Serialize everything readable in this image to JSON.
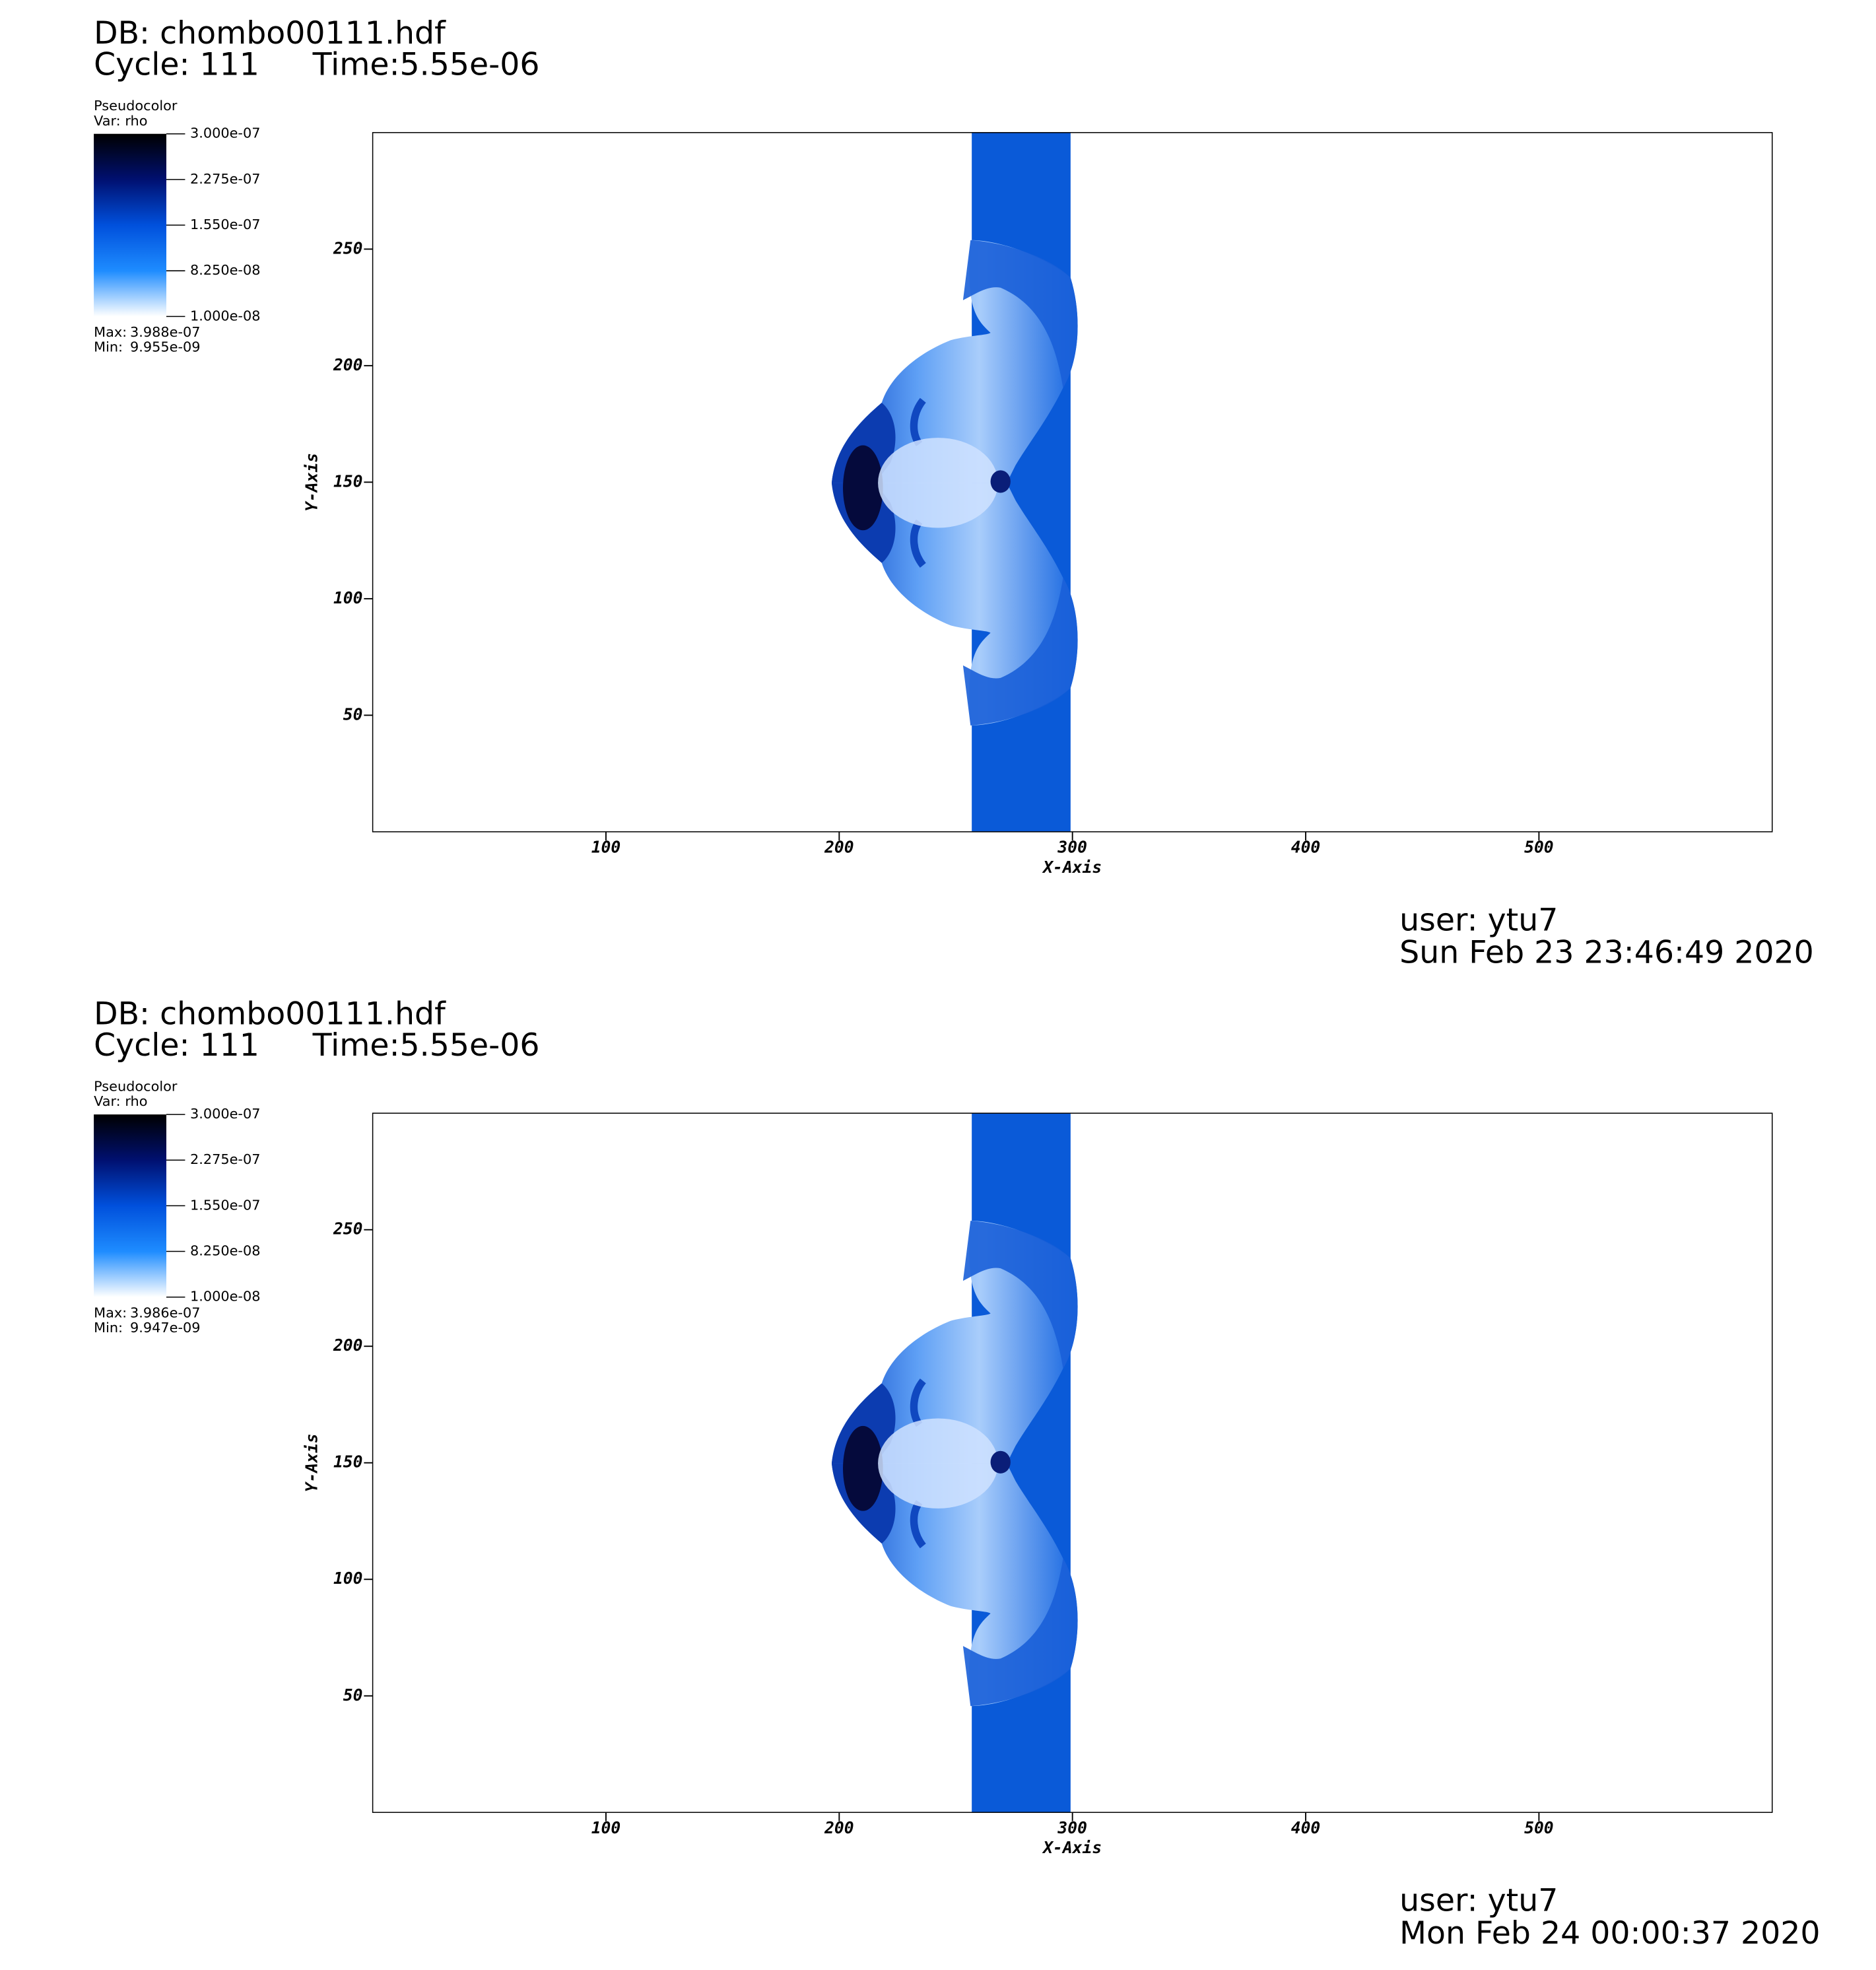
{
  "chart_data": [
    {
      "type": "pseudocolor",
      "db": "DB: chombo00111.hdf",
      "cycle": "Cycle: 111",
      "time": "Time:5.55e-06",
      "legend_title": "Pseudocolor",
      "variable": "Var: rho",
      "colormap": [
        "#ffffff",
        "#1e8cff",
        "#0050dc",
        "#001070",
        "#000000"
      ],
      "clim": [
        1e-08,
        3e-07
      ],
      "cticks": [
        {
          "value": 3e-07,
          "label": "3.000e-07"
        },
        {
          "value": 2.275e-07,
          "label": "2.275e-07"
        },
        {
          "value": 1.55e-07,
          "label": "1.550e-07"
        },
        {
          "value": 8.25e-08,
          "label": "8.250e-08"
        },
        {
          "value": 1e-08,
          "label": "1.000e-08"
        }
      ],
      "max_label": "Max:",
      "max": {
        "value": 3.988e-07,
        "label": "3.988e-07"
      },
      "min_label": "Min:",
      "min": {
        "value": 9.955e-09,
        "label": "9.955e-09"
      },
      "xlabel": "X-Axis",
      "ylabel": "Y-Axis",
      "xlim": [
        0,
        600
      ],
      "ylim": [
        0,
        300
      ],
      "xticks": [
        100,
        200,
        300,
        400,
        500
      ],
      "yticks": [
        50,
        100,
        150,
        200,
        250
      ],
      "user": "user: ytu7",
      "date": "Sun Feb 23 23:46:49 2020"
    },
    {
      "type": "pseudocolor",
      "db": "DB: chombo00111.hdf",
      "cycle": "Cycle: 111",
      "time": "Time:5.55e-06",
      "legend_title": "Pseudocolor",
      "variable": "Var: rho",
      "colormap": [
        "#ffffff",
        "#1e8cff",
        "#0050dc",
        "#001070",
        "#000000"
      ],
      "clim": [
        1e-08,
        3e-07
      ],
      "cticks": [
        {
          "value": 3e-07,
          "label": "3.000e-07"
        },
        {
          "value": 2.275e-07,
          "label": "2.275e-07"
        },
        {
          "value": 1.55e-07,
          "label": "1.550e-07"
        },
        {
          "value": 8.25e-08,
          "label": "8.250e-08"
        },
        {
          "value": 1e-08,
          "label": "1.000e-08"
        }
      ],
      "max_label": "Max:",
      "max": {
        "value": 3.986e-07,
        "label": "3.986e-07"
      },
      "min_label": "Min:",
      "min": {
        "value": 9.947e-09,
        "label": "9.947e-09"
      },
      "xlabel": "X-Axis",
      "ylabel": "Y-Axis",
      "xlim": [
        0,
        600
      ],
      "ylim": [
        0,
        300
      ],
      "xticks": [
        100,
        200,
        300,
        400,
        500
      ],
      "yticks": [
        50,
        100,
        150,
        200,
        250
      ],
      "user": "user: ytu7",
      "date": "Mon Feb 24 00:00:37 2020"
    }
  ]
}
